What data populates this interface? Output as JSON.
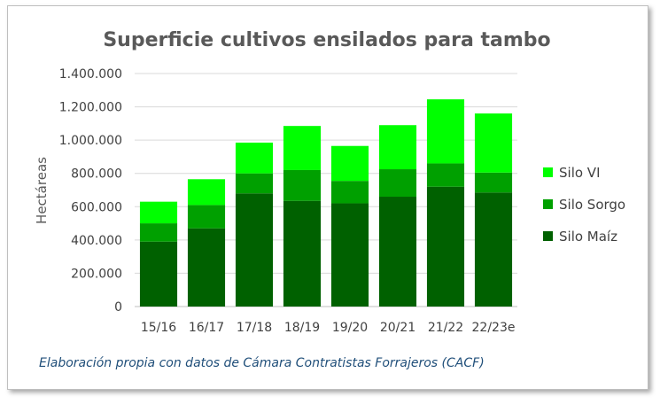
{
  "chart_data": {
    "type": "bar",
    "stacked": true,
    "title": "Superficie cultivos ensilados para tambo",
    "xlabel": "",
    "ylabel": "Hectáreas",
    "categories": [
      "15/16",
      "16/17",
      "17/18",
      "18/19",
      "19/20",
      "20/21",
      "21/22",
      "22/23e"
    ],
    "ylim": [
      0,
      1400000
    ],
    "yticks": [
      0,
      200000,
      400000,
      600000,
      800000,
      1000000,
      1200000,
      1400000
    ],
    "ytick_labels": [
      "0",
      "200.000",
      "400.000",
      "600.000",
      "800.000",
      "1.000.000",
      "1.200.000",
      "1.400.000"
    ],
    "grid": true,
    "legend_position": "right",
    "series": [
      {
        "name": "Silo Maíz",
        "color": "#006100",
        "values": [
          390000,
          470000,
          680000,
          635000,
          620000,
          660000,
          720000,
          685000
        ]
      },
      {
        "name": "Silo Sorgo",
        "color": "#00A000",
        "values": [
          110000,
          140000,
          120000,
          185000,
          135000,
          165000,
          140000,
          120000
        ]
      },
      {
        "name": "Silo VI",
        "color": "#00FF00",
        "values": [
          130000,
          155000,
          185000,
          265000,
          210000,
          265000,
          385000,
          355000
        ]
      }
    ],
    "legend_order": [
      "Silo VI",
      "Silo Sorgo",
      "Silo Maíz"
    ],
    "note": "Elaboración propia con datos de Cámara Contratistas Forrajeros (CACF)"
  }
}
